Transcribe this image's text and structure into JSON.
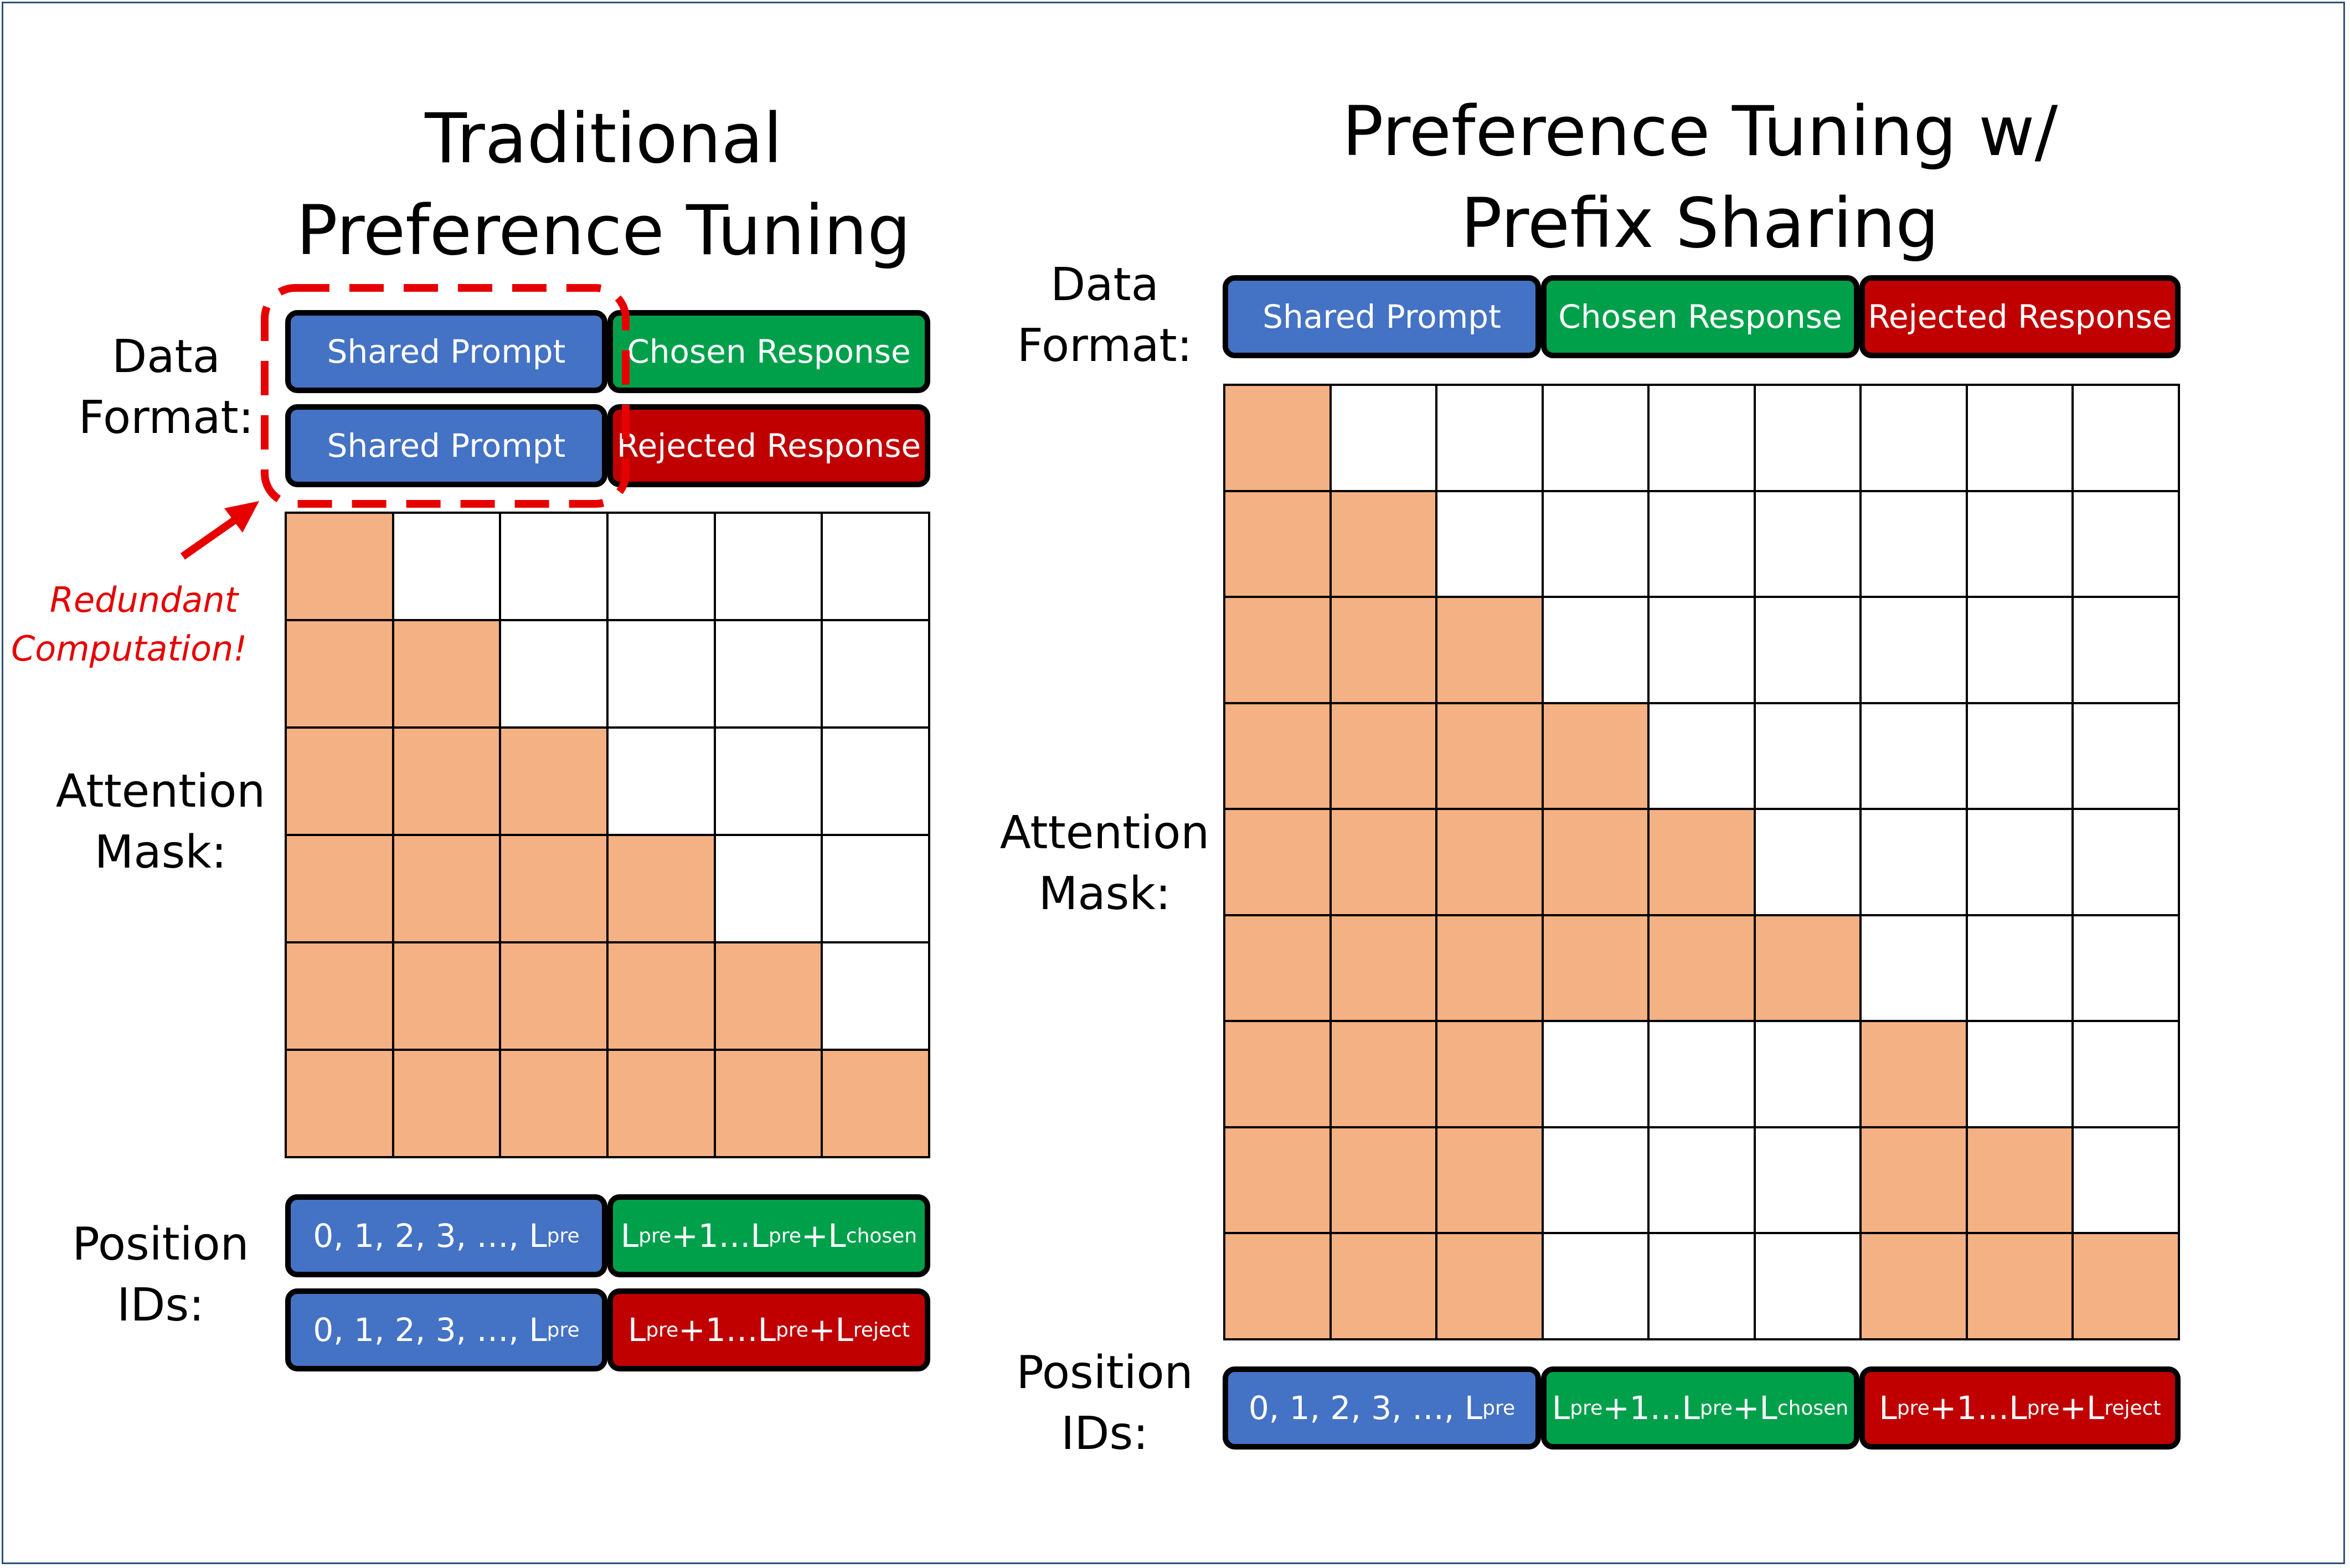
{
  "colors": {
    "prompt": "#4472c4",
    "chosen": "#00a04b",
    "rejected": "#c00000",
    "mask_on": "#f4b183",
    "mask_off": "#ffffff",
    "annotation": "#e60000"
  },
  "left": {
    "title_line1": "Traditional",
    "title_line2": "Preference Tuning",
    "data_format_line1": "Data",
    "data_format_line2": "Format:",
    "row1": {
      "prompt": "Shared Prompt",
      "response": "Chosen Response"
    },
    "row2": {
      "prompt": "Shared Prompt",
      "response": "Rejected Response"
    },
    "annotation_line1": "Redundant",
    "annotation_line2": "Computation!",
    "attention_line1": "Attention",
    "attention_line2": "Mask:",
    "mask": [
      [
        1,
        0,
        0,
        0,
        0,
        0
      ],
      [
        1,
        1,
        0,
        0,
        0,
        0
      ],
      [
        1,
        1,
        1,
        0,
        0,
        0
      ],
      [
        1,
        1,
        1,
        1,
        0,
        0
      ],
      [
        1,
        1,
        1,
        1,
        1,
        0
      ],
      [
        1,
        1,
        1,
        1,
        1,
        1
      ]
    ],
    "position_line1": "Position",
    "position_line2": "IDs:",
    "pos_row1": {
      "prompt_text": "0, 1, 2, 3, …, L",
      "prompt_sub": "pre",
      "chosen_parts": [
        "L",
        "pre",
        "+1…L",
        "pre",
        "+L",
        "chosen"
      ]
    },
    "pos_row2": {
      "prompt_text": "0, 1, 2, 3, …, L",
      "prompt_sub": "pre",
      "reject_parts": [
        "L",
        "pre",
        "+1…L",
        "pre",
        "+L",
        "reject"
      ]
    }
  },
  "right": {
    "title_line1": "Preference Tuning w/",
    "title_line2": "Prefix Sharing",
    "data_format_line1": "Data",
    "data_format_line2": "Format:",
    "row": {
      "prompt": "Shared Prompt",
      "chosen": "Chosen Response",
      "rejected": "Rejected Response"
    },
    "attention_line1": "Attention",
    "attention_line2": "Mask:",
    "mask": [
      [
        1,
        0,
        0,
        0,
        0,
        0,
        0,
        0,
        0
      ],
      [
        1,
        1,
        0,
        0,
        0,
        0,
        0,
        0,
        0
      ],
      [
        1,
        1,
        1,
        0,
        0,
        0,
        0,
        0,
        0
      ],
      [
        1,
        1,
        1,
        1,
        0,
        0,
        0,
        0,
        0
      ],
      [
        1,
        1,
        1,
        1,
        1,
        0,
        0,
        0,
        0
      ],
      [
        1,
        1,
        1,
        1,
        1,
        1,
        0,
        0,
        0
      ],
      [
        1,
        1,
        1,
        0,
        0,
        0,
        1,
        0,
        0
      ],
      [
        1,
        1,
        1,
        0,
        0,
        0,
        1,
        1,
        0
      ],
      [
        1,
        1,
        1,
        0,
        0,
        0,
        1,
        1,
        1
      ]
    ],
    "position_line1": "Position",
    "position_line2": "IDs:",
    "pos": {
      "prompt_text": "0, 1, 2, 3, …, L",
      "prompt_sub": "pre",
      "chosen_parts": [
        "L",
        "pre",
        "+1…L",
        "pre",
        "+L",
        "chosen"
      ],
      "reject_parts": [
        "L",
        "pre",
        "+1…L",
        "pre",
        "+L",
        "reject"
      ]
    }
  }
}
